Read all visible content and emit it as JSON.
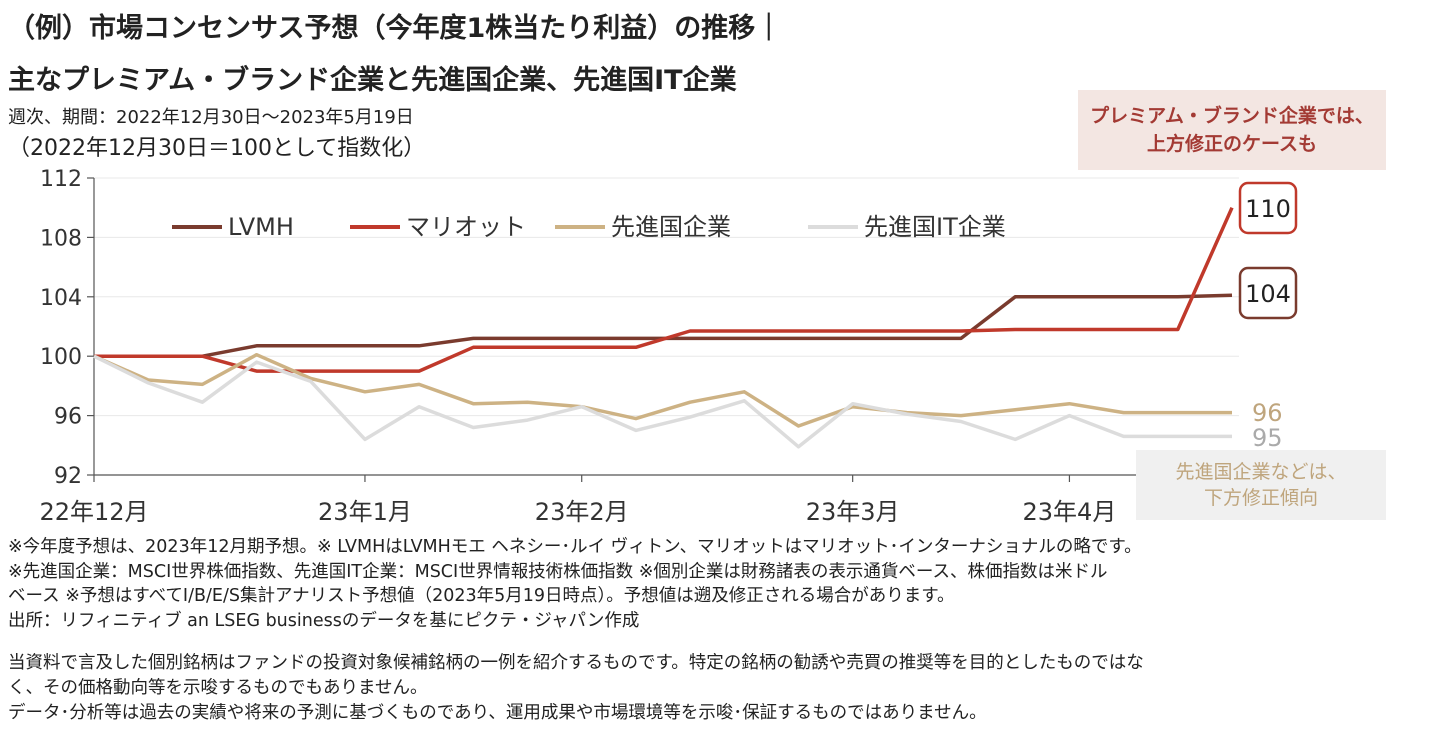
{
  "header": {
    "title_line1": "（例）市場コンセンサス予想（今年度1株当たり利益）の推移｜",
    "title_line2": "主なプレミアム・ブランド企業と先進国企業、先進国IT企業",
    "period": "週次、期間：2022年12月30日～2023年5月19日",
    "index_note": "（2022年12月30日＝100として指数化）"
  },
  "callouts": {
    "up_line1": "プレミアム・ブランド企業では、",
    "up_line2": "上方修正のケースも",
    "down_line1": "先進国企業などは、",
    "down_line2": "下方修正傾向"
  },
  "chart_data": {
    "type": "line",
    "ylim": [
      92,
      112
    ],
    "yticks": [
      92,
      96,
      100,
      104,
      108,
      112
    ],
    "x_tick_labels": [
      "22年12月",
      "23年1月",
      "23年2月",
      "23年3月",
      "23年4月"
    ],
    "x_tick_index": [
      0,
      5,
      9,
      14,
      18
    ],
    "legend_position": "top",
    "series": [
      {
        "name": "LVMH",
        "color": "#7a3b2e",
        "end_label": "104",
        "values": [
          100,
          100,
          100,
          100.7,
          100.7,
          100.7,
          100.7,
          101.2,
          101.2,
          101.2,
          101.2,
          101.2,
          101.2,
          101.2,
          101.2,
          101.2,
          101.2,
          104,
          104,
          104,
          104,
          104.1
        ]
      },
      {
        "name": "マリオット",
        "color": "#c0392b",
        "end_label": "110",
        "values": [
          100,
          100,
          100,
          99,
          99,
          99,
          99,
          100.6,
          100.6,
          100.6,
          100.6,
          101.7,
          101.7,
          101.7,
          101.7,
          101.7,
          101.7,
          101.8,
          101.8,
          101.8,
          101.8,
          110
        ]
      },
      {
        "name": "先進国企業",
        "color": "#cdb284",
        "end_label": "96",
        "values": [
          100,
          98.4,
          98.1,
          100.1,
          98.5,
          97.6,
          98.1,
          96.8,
          96.9,
          96.6,
          95.8,
          96.9,
          97.6,
          95.3,
          96.6,
          96.2,
          96,
          96.4,
          96.8,
          96.2,
          96.2,
          96.2
        ]
      },
      {
        "name": "先進国IT企業",
        "color": "#dcdcdc",
        "end_label": "95",
        "values": [
          100,
          98.2,
          96.9,
          99.6,
          98.3,
          94.4,
          96.6,
          95.2,
          95.7,
          96.6,
          95,
          95.9,
          97,
          93.9,
          96.8,
          96.1,
          95.6,
          94.4,
          96,
          94.6,
          94.6,
          94.6
        ]
      }
    ]
  },
  "notes": {
    "line1": "※今年度予想は、2023年12月期予想。※ LVMHはLVMHモエ ヘネシー･ルイ ヴィトン、マリオットはマリオット･インターナショナルの略です。",
    "line2": "※先進国企業：MSCI世界株価指数、先進国IT企業：MSCI世界情報技術株価指数 ※個別企業は財務諸表の表示通貨ベース、株価指数は米ドル",
    "line3": "ベース ※予想はすべてI/B/E/S集計アナリスト予想値（2023年5月19日時点）。予想値は遡及修正される場合があります。",
    "line4": "出所：リフィニティブ an LSEG businessのデータを基にピクテ・ジャパン作成"
  },
  "disclaimer": {
    "line1": "当資料で言及した個別銘柄はファンドの投資対象候補銘柄の一例を紹介するものです。特定の銘柄の勧誘や売買の推奨等を目的としたものではな",
    "line2": "く、その価格動向等を示唆するものでもありません。",
    "line3": "データ･分析等は過去の実績や将来の予測に基づくものであり、運用成果や市場環境等を示唆･保証するものではありません。"
  }
}
